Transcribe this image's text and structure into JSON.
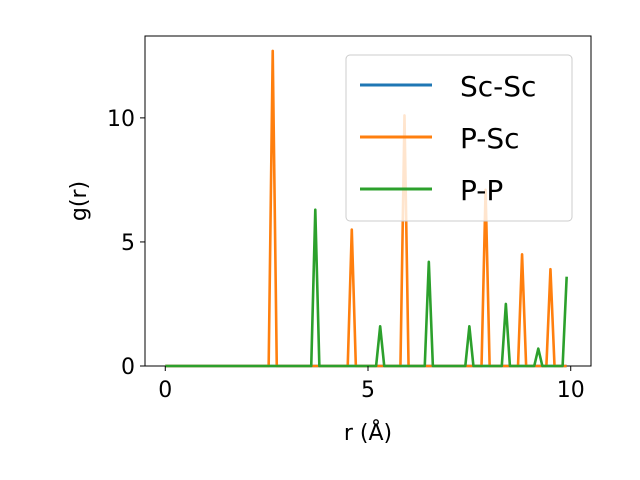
{
  "chart_data": {
    "type": "line",
    "xlabel": "r (Å)",
    "ylabel": "g(r)",
    "xlim": [
      -0.5,
      10.5
    ],
    "ylim": [
      0,
      13.3
    ],
    "xticks": [
      0,
      5,
      10
    ],
    "yticks": [
      0,
      5,
      10
    ],
    "grid": false,
    "legend_position": "top-right",
    "series": [
      {
        "name": "Sc-Sc",
        "color": "#1f77b4",
        "points": [
          [
            0,
            0
          ],
          [
            9.9,
            0
          ]
        ]
      },
      {
        "name": "P-Sc",
        "color": "#ff7f0e",
        "points": [
          [
            0,
            0
          ],
          [
            2.55,
            0
          ],
          [
            2.65,
            12.7
          ],
          [
            2.75,
            0
          ],
          [
            4.5,
            0
          ],
          [
            4.6,
            5.5
          ],
          [
            4.7,
            0
          ],
          [
            5.8,
            0
          ],
          [
            5.9,
            10.1
          ],
          [
            6.0,
            0
          ],
          [
            7.8,
            0
          ],
          [
            7.9,
            7.1
          ],
          [
            8.0,
            0
          ],
          [
            8.7,
            0
          ],
          [
            8.8,
            4.5
          ],
          [
            8.9,
            0
          ],
          [
            9.4,
            0
          ],
          [
            9.5,
            3.9
          ],
          [
            9.6,
            0
          ],
          [
            9.9,
            0
          ]
        ]
      },
      {
        "name": "P-P",
        "color": "#2ca02c",
        "points": [
          [
            0,
            0
          ],
          [
            3.6,
            0
          ],
          [
            3.7,
            6.3
          ],
          [
            3.8,
            0
          ],
          [
            5.2,
            0
          ],
          [
            5.3,
            1.6
          ],
          [
            5.4,
            0
          ],
          [
            6.4,
            0
          ],
          [
            6.5,
            4.2
          ],
          [
            6.6,
            0
          ],
          [
            7.4,
            0
          ],
          [
            7.5,
            1.6
          ],
          [
            7.6,
            0
          ],
          [
            8.3,
            0
          ],
          [
            8.4,
            2.5
          ],
          [
            8.5,
            0
          ],
          [
            9.1,
            0
          ],
          [
            9.2,
            0.7
          ],
          [
            9.3,
            0
          ],
          [
            9.8,
            0
          ],
          [
            9.9,
            3.6
          ]
        ]
      }
    ]
  }
}
